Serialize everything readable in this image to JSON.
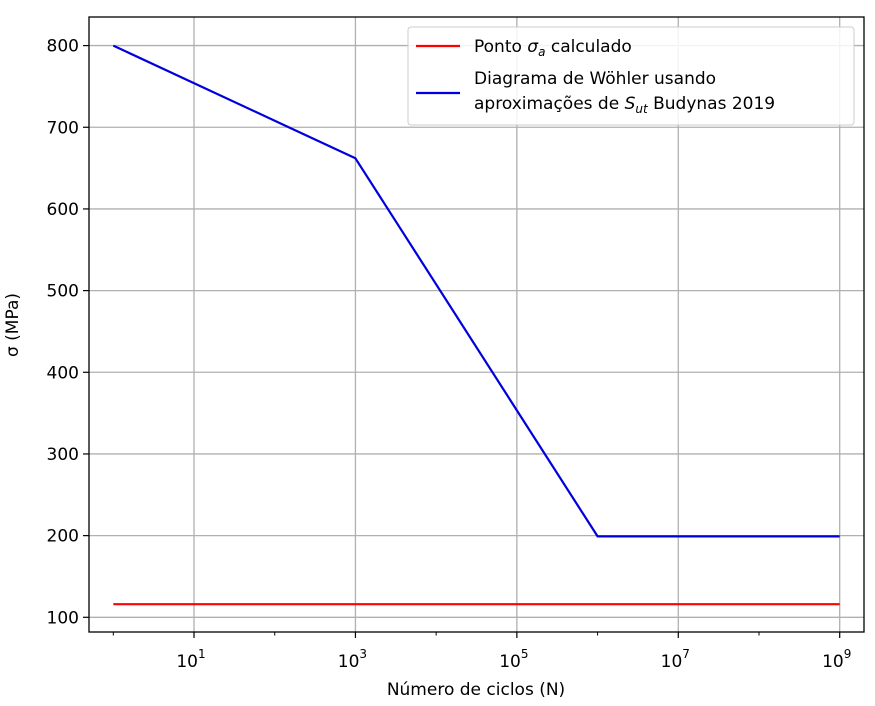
{
  "chart_data": {
    "type": "line",
    "xlabel": "Número de ciclos (N)",
    "ylabel": "σ (MPa)",
    "xscale": "log",
    "xlim": [
      0.5,
      2000000000
    ],
    "ylim": [
      82,
      835
    ],
    "yticks": [
      100,
      200,
      300,
      400,
      500,
      600,
      700,
      800
    ],
    "xticks": [
      {
        "value": 10,
        "base": "10",
        "exp": "1"
      },
      {
        "value": 1000,
        "base": "10",
        "exp": "3"
      },
      {
        "value": 100000,
        "base": "10",
        "exp": "5"
      },
      {
        "value": 10000000,
        "base": "10",
        "exp": "7"
      },
      {
        "value": 1000000000,
        "base": "10",
        "exp": "9"
      }
    ],
    "grid": true,
    "legend_position": "top-right",
    "series": [
      {
        "name_parts": {
          "before": "Ponto ",
          "symbol": "σ",
          "sub": "a",
          "after": " calculado"
        },
        "color": "#ff0000",
        "x": [
          1,
          1000000000
        ],
        "y": [
          116,
          116
        ]
      },
      {
        "name_line1": "Diagrama de Wöhler usando",
        "name_line2_parts": {
          "before": "aproximações de ",
          "symbol": "S",
          "sub": "ut",
          "after": " Budynas 2019"
        },
        "color": "#0000dd",
        "x": [
          1,
          1000,
          1000000,
          1000000000
        ],
        "y": [
          800,
          662,
          199,
          199
        ]
      }
    ]
  }
}
